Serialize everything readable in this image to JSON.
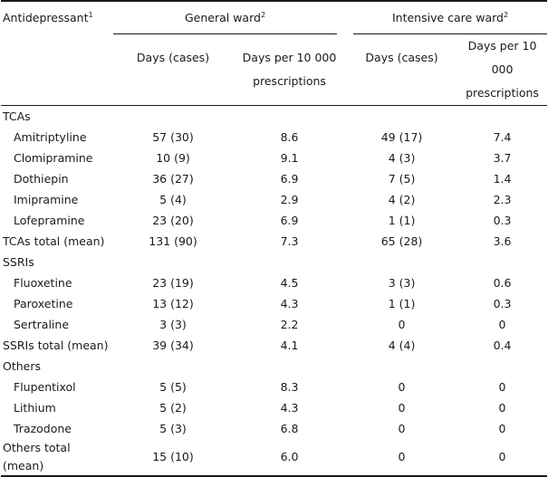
{
  "header": {
    "first_col": "Antidepressant",
    "first_col_sup": "1",
    "general_ward": "General ward",
    "general_ward_sup": "2",
    "icu_ward": "Intensive care ward",
    "icu_ward_sup": "2",
    "days_cases": "Days (cases)",
    "days_per_line1": "Days per 10 000",
    "days_per_line2": "prescriptions"
  },
  "rows": [
    {
      "label": "TCAs",
      "type": "section",
      "gw_days": "",
      "gw_rate": "",
      "icu_days": "",
      "icu_rate": ""
    },
    {
      "label": "Amitriptyline",
      "type": "item",
      "gw_days": "57 (30)",
      "gw_rate": "8.6",
      "icu_days": "49 (17)",
      "icu_rate": "7.4"
    },
    {
      "label": "Clomipramine",
      "type": "item",
      "gw_days": "10 (9)",
      "gw_rate": "9.1",
      "icu_days": "4 (3)",
      "icu_rate": "3.7"
    },
    {
      "label": "Dothiepin",
      "type": "item",
      "gw_days": "36 (27)",
      "gw_rate": "6.9",
      "icu_days": "7 (5)",
      "icu_rate": "1.4"
    },
    {
      "label": "Imipramine",
      "type": "item",
      "gw_days": "5 (4)",
      "gw_rate": "2.9",
      "icu_days": "4 (2)",
      "icu_rate": "2.3"
    },
    {
      "label": "Lofepramine",
      "type": "item",
      "gw_days": "23 (20)",
      "gw_rate": "6.9",
      "icu_days": "1 (1)",
      "icu_rate": "0.3"
    },
    {
      "label": "TCAs total (mean)",
      "type": "total",
      "gw_days": "131 (90)",
      "gw_rate": "7.3",
      "icu_days": "65 (28)",
      "icu_rate": "3.6"
    },
    {
      "label": "SSRIs",
      "type": "section",
      "gw_days": "",
      "gw_rate": "",
      "icu_days": "",
      "icu_rate": ""
    },
    {
      "label": "Fluoxetine",
      "type": "item",
      "gw_days": "23 (19)",
      "gw_rate": "4.5",
      "icu_days": "3 (3)",
      "icu_rate": "0.6"
    },
    {
      "label": "Paroxetine",
      "type": "item",
      "gw_days": "13 (12)",
      "gw_rate": "4.3",
      "icu_days": "1 (1)",
      "icu_rate": "0.3"
    },
    {
      "label": "Sertraline",
      "type": "item",
      "gw_days": "3 (3)",
      "gw_rate": "2.2",
      "icu_days": "0",
      "icu_rate": "0"
    },
    {
      "label": "SSRIs total (mean)",
      "type": "total",
      "gw_days": "39 (34)",
      "gw_rate": "4.1",
      "icu_days": "4 (4)",
      "icu_rate": "0.4"
    },
    {
      "label": "Others",
      "type": "section",
      "gw_days": "",
      "gw_rate": "",
      "icu_days": "",
      "icu_rate": ""
    },
    {
      "label": "Flupentixol",
      "type": "item",
      "gw_days": "5 (5)",
      "gw_rate": "8.3",
      "icu_days": "0",
      "icu_rate": "0"
    },
    {
      "label": "Lithium",
      "type": "item",
      "gw_days": "5 (2)",
      "gw_rate": "4.3",
      "icu_days": "0",
      "icu_rate": "0"
    },
    {
      "label": "Trazodone",
      "type": "item",
      "gw_days": "5 (3)",
      "gw_rate": "6.8",
      "icu_days": "0",
      "icu_rate": "0"
    },
    {
      "label": "Others total (mean)",
      "type": "total",
      "gw_days": "15 (10)",
      "gw_rate": "6.0",
      "icu_days": "0",
      "icu_rate": "0"
    }
  ]
}
